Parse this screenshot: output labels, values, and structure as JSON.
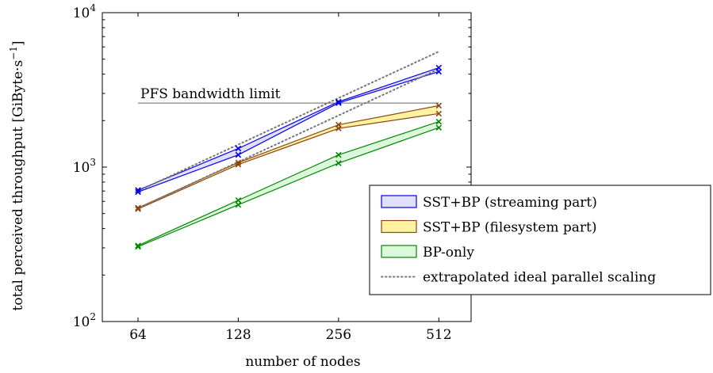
{
  "chart_data": {
    "type": "line",
    "xlabel": "number of nodes",
    "ylabel": "total perceived throughput [GiByte·s",
    "ylabel_superscript": "−1",
    "ylabel_close": "]",
    "x_scale": "log2",
    "y_scale": "log10",
    "xlim": [
      50,
      640
    ],
    "ylim": [
      100,
      10000
    ],
    "x_ticks": [
      64,
      128,
      256,
      512
    ],
    "x_tick_labels": [
      "64",
      "128",
      "256",
      "512"
    ],
    "y_ticks": [
      100,
      1000,
      10000
    ],
    "y_tick_base": [
      "10",
      "10",
      "10"
    ],
    "y_tick_exp": [
      "2",
      "3",
      "4"
    ],
    "grid": false,
    "legend_position": "right",
    "bands": [
      {
        "name": "SST+BP (streaming part)",
        "color": "#0000ee",
        "fill": "#e0e0fa",
        "x": [
          64,
          128,
          256,
          512
        ],
        "lower": [
          690,
          1200,
          2600,
          4150
        ],
        "upper": [
          710,
          1320,
          2650,
          4400
        ]
      },
      {
        "name": "SST+BP (filesystem part)",
        "color": "#8b4513",
        "fill": "#fff2a0",
        "x": [
          64,
          128,
          256,
          512
        ],
        "lower": [
          535,
          1040,
          1780,
          2220
        ],
        "upper": [
          545,
          1070,
          1880,
          2500
        ]
      },
      {
        "name": "BP-only",
        "color": "#008800",
        "fill": "#dcf7dc",
        "x": [
          64,
          128,
          256,
          512
        ],
        "lower": [
          305,
          570,
          1060,
          1800
        ],
        "upper": [
          310,
          610,
          1200,
          1970
        ]
      }
    ],
    "ideal_scaling": {
      "name": "extrapolated ideal parallel scaling",
      "color": "#777777",
      "lines": [
        {
          "x": [
            64,
            512
          ],
          "y": [
            700,
            5600
          ]
        },
        {
          "x": [
            64,
            512
          ],
          "y": [
            540,
            4320
          ]
        }
      ]
    },
    "bandwidth_limit": {
      "label": "PFS bandwidth limit",
      "y": 2600,
      "x": [
        50,
        512
      ]
    }
  }
}
